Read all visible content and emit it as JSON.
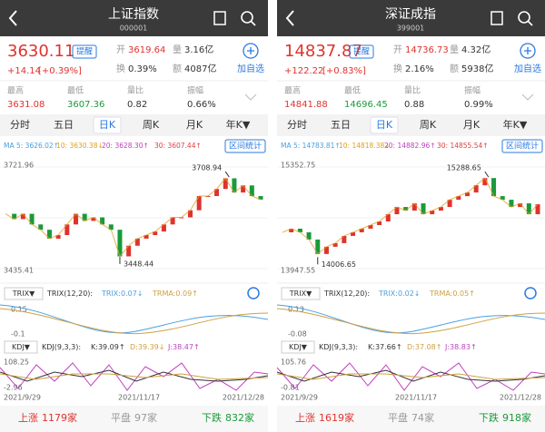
{
  "panels": [
    {
      "title": "上证指数",
      "code": "000001",
      "price": "3630.11",
      "remind": "提醒",
      "change": "+14.14",
      "change_pct": "[+0.39%]",
      "open_label": "开",
      "open": "3619.64",
      "volume_label": "量",
      "volume": "3.16亿",
      "turnover_label": "换",
      "turnover": "0.39%",
      "amount_label": "额",
      "amount": "4087亿",
      "add": "加自选",
      "stats": [
        {
          "label": "最高",
          "value": "3631.08"
        },
        {
          "label": "最低",
          "value": "3607.36"
        },
        {
          "label": "量比",
          "value": "0.82"
        },
        {
          "label": "振幅",
          "value": "0.66%"
        }
      ],
      "tabs": [
        "分时",
        "五日",
        "日K",
        "周K",
        "月K",
        "年K▼"
      ],
      "ma": [
        "MA 5: 3626.02↑",
        "10: 3630.38↓",
        "20: 3628.30↑",
        "30: 3607.44↑"
      ],
      "range_stats": "区间统计",
      "kline": {
        "ylim": [
          3435.41,
          3721.96
        ],
        "max": 3708.94,
        "min": 3448.44,
        "closes": [
          3590,
          3575,
          3590,
          3560,
          3545,
          3520,
          3530,
          3560,
          3590,
          3570,
          3580,
          3560,
          3545,
          3470,
          3500,
          3520,
          3530,
          3540,
          3560,
          3580,
          3580,
          3600,
          3640,
          3640,
          3660,
          3690,
          3650,
          3670,
          3640,
          3630
        ]
      },
      "trix": {
        "button": "TRIX▼",
        "params": "TRIX(12,20):",
        "trix": "TRIX:0.07↓",
        "trma": "TRMA:0.09↑",
        "top": "0.15",
        "bottom": "-0.1"
      },
      "kdj": {
        "button": "KDJ▼",
        "params": "KDJ(9,3,3):",
        "k": "K:39.09↑",
        "d": "D:39.39↓",
        "j": "J:38.47↑",
        "top": "108.25",
        "bottom": "-2.96"
      },
      "dates": [
        "2021/9/29",
        "2021/11/17",
        "2021/12/28"
      ],
      "footer": [
        {
          "label": "上涨",
          "value": "1179家"
        },
        {
          "label": "平盘",
          "value": "97家"
        },
        {
          "label": "下跌",
          "value": "832家"
        }
      ]
    },
    {
      "title": "深证成指",
      "code": "399001",
      "price": "14837.87",
      "remind": "提醒",
      "change": "+122.22",
      "change_pct": "[+0.83%]",
      "open_label": "开",
      "open": "14736.73",
      "volume_label": "量",
      "volume": "4.32亿",
      "turnover_label": "换",
      "turnover": "2.16%",
      "amount_label": "额",
      "amount": "5938亿",
      "add": "加自选",
      "stats": [
        {
          "label": "最高",
          "value": "14841.88"
        },
        {
          "label": "最低",
          "value": "14696.45"
        },
        {
          "label": "量比",
          "value": "0.88"
        },
        {
          "label": "振幅",
          "value": "0.99%"
        }
      ],
      "tabs": [
        "分时",
        "五日",
        "日K",
        "周K",
        "月K",
        "年K▼"
      ],
      "ma": [
        "MA 5: 14783.81↑",
        "10: 14818.38↓",
        "20: 14882.96↑",
        "30: 14855.54↑"
      ],
      "range_stats": "区间统计",
      "kline": {
        "ylim": [
          13947.55,
          15352.75
        ],
        "max": 15288.65,
        "min": 14006.65,
        "closes": [
          14450,
          14500,
          14450,
          14350,
          14150,
          14250,
          14300,
          14400,
          14450,
          14500,
          14550,
          14600,
          14700,
          14800,
          14750,
          14850,
          14700,
          14750,
          14800,
          14900,
          14950,
          15000,
          15100,
          15200,
          14950,
          14900,
          14800,
          14850,
          14700,
          14837.87
        ]
      },
      "trix": {
        "button": "TRIX▼",
        "params": "TRIX(12,20):",
        "trix": "TRIX:0.02↓",
        "trma": "TRMA:0.05↑",
        "top": "0.13",
        "bottom": "-0.08"
      },
      "kdj": {
        "button": "KDJ▼",
        "params": "KDJ(9,3,3):",
        "k": "K:37.66↑",
        "d": "D:37.08↑",
        "j": "J:38.83↑",
        "top": "105.76",
        "bottom": "-0.81"
      },
      "dates": [
        "2021/9/29",
        "2021/11/17",
        "2021/12/28"
      ],
      "footer": [
        {
          "label": "上涨",
          "value": "1619家"
        },
        {
          "label": "平盘",
          "value": "74家"
        },
        {
          "label": "下跌",
          "value": "918家"
        }
      ]
    }
  ]
}
